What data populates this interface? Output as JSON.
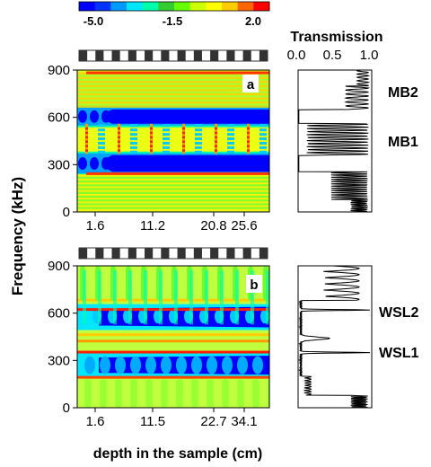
{
  "figure": {
    "colorbar": {
      "tick_labels": [
        "-5.0",
        "-1.5",
        "2.0"
      ],
      "colors": [
        "#0000ff",
        "#0033ff",
        "#0099ff",
        "#00e6ff",
        "#00ffaa",
        "#33cc33",
        "#66ff00",
        "#ccff00",
        "#ffff00",
        "#ffcc00",
        "#ff6600",
        "#ff0000"
      ]
    },
    "transmission_title": "Transmission",
    "transmission_ticks": [
      "0.0",
      "0.5",
      "1.0"
    ],
    "y_label": "Frequency (kHz)",
    "x_label": "depth in the sample (cm)",
    "panel_a": {
      "label": "a",
      "y_ticks": [
        "0",
        "300",
        "600",
        "900"
      ],
      "x_ticks": [
        "1.6",
        "11.2",
        "20.8",
        "25.6"
      ],
      "band_labels": [
        "MB2",
        "MB1"
      ]
    },
    "panel_b": {
      "label": "b",
      "y_ticks": [
        "0",
        "300",
        "600",
        "900"
      ],
      "x_ticks": [
        "1.6",
        "11.5",
        "22.7",
        "34.1"
      ],
      "band_labels": [
        "WSL2",
        "WSL1"
      ]
    }
  },
  "chart_data": [
    {
      "type": "heatmap",
      "panel": "a",
      "ylabel": "Frequency (kHz)",
      "xlabel": "depth in the sample (cm)",
      "x_tick_values": [
        1.6,
        11.2,
        20.8,
        25.6
      ],
      "ylim": [
        0,
        900
      ],
      "color_scale": [
        -5.0,
        2.0
      ],
      "stop_bands_khz": [
        [
          255,
          360
        ],
        [
          560,
          650
        ]
      ]
    },
    {
      "type": "line",
      "panel": "a",
      "title": "Transmission",
      "xlim": [
        0,
        1
      ],
      "ylim": [
        0,
        900
      ],
      "stop_bands_khz": [
        [
          255,
          360
        ],
        [
          560,
          650
        ]
      ],
      "labels": [
        {
          "text": "MB2",
          "freq_khz": 780
        },
        {
          "text": "MB1",
          "freq_khz": 470
        }
      ]
    },
    {
      "type": "heatmap",
      "panel": "b",
      "ylabel": "Frequency (kHz)",
      "xlabel": "depth in the sample (cm)",
      "x_tick_values": [
        1.6,
        11.5,
        22.7,
        34.1
      ],
      "ylim": [
        0,
        900
      ],
      "color_scale": [
        -5.0,
        2.0
      ],
      "stop_bands_khz": [
        [
          210,
          330
        ],
        [
          510,
          640
        ]
      ]
    },
    {
      "type": "line",
      "panel": "b",
      "ylim": [
        0,
        900
      ],
      "peaks_khz": [
        350,
        620
      ],
      "labels": [
        {
          "text": "WSL2",
          "freq_khz": 620
        },
        {
          "text": "WSL1",
          "freq_khz": 355
        }
      ]
    }
  ]
}
